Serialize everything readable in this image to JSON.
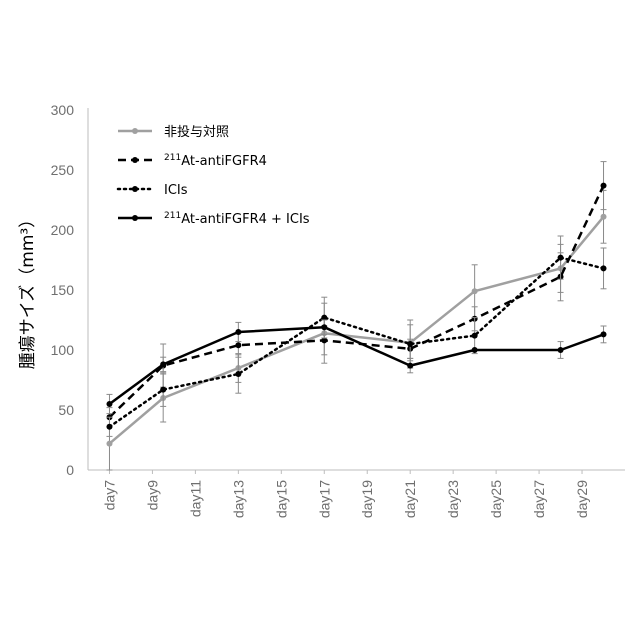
{
  "chart_data": {
    "type": "line",
    "title": "",
    "xlabel": "",
    "ylabel": "腫瘍サイズ（mm³）",
    "ylim": [
      0,
      300
    ],
    "yticks": [
      0,
      50,
      100,
      150,
      200,
      250,
      300
    ],
    "categories": [
      "day7",
      "day9",
      "day11",
      "day13",
      "day15",
      "day17",
      "day19",
      "day21",
      "day23",
      "day25",
      "day27",
      "day29"
    ],
    "legend_position": "top-left",
    "grid": false,
    "series": [
      {
        "name": "非投与対照",
        "style": "solid",
        "color": "#a0a0a0",
        "points": [
          {
            "x": 7,
            "y": 22,
            "err": 22
          },
          {
            "x": 9.5,
            "y": 60,
            "err": 20
          },
          {
            "x": 13,
            "y": 85,
            "err": 12
          },
          {
            "x": 17,
            "y": 114,
            "err": 25
          },
          {
            "x": 21,
            "y": 106,
            "err": 15
          },
          {
            "x": 24,
            "y": 149,
            "err": 22
          },
          {
            "x": 28,
            "y": 168,
            "err": 20
          },
          {
            "x": 30,
            "y": 211,
            "err": 22
          }
        ]
      },
      {
        "name": "At-antiFGFR4",
        "sup": "211",
        "style": "dashed",
        "color": "#000000",
        "points": [
          {
            "x": 7,
            "y": 44,
            "err": 8
          },
          {
            "x": 9.5,
            "y": 87,
            "err": 18
          },
          {
            "x": 13,
            "y": 104,
            "err": 10
          },
          {
            "x": 17,
            "y": 108,
            "err": 12
          },
          {
            "x": 21,
            "y": 101,
            "err": 8
          },
          {
            "x": 24,
            "y": 126,
            "err": 10
          },
          {
            "x": 28,
            "y": 161,
            "err": 20
          },
          {
            "x": 30,
            "y": 237,
            "err": 20
          }
        ]
      },
      {
        "name": "ICIs",
        "style": "dotted",
        "color": "#000000",
        "points": [
          {
            "x": 7,
            "y": 36,
            "err": 8
          },
          {
            "x": 9.5,
            "y": 67,
            "err": 14
          },
          {
            "x": 13,
            "y": 80,
            "err": 16
          },
          {
            "x": 17,
            "y": 127,
            "err": 17
          },
          {
            "x": 21,
            "y": 105,
            "err": 20
          },
          {
            "x": 24,
            "y": 112,
            "err": 15
          },
          {
            "x": 28,
            "y": 177,
            "err": 18
          },
          {
            "x": 30,
            "y": 168,
            "err": 17
          }
        ]
      },
      {
        "name": "At-antiFGFR4 + ICIs",
        "sup": "211",
        "style": "solid",
        "color": "#000000",
        "points": [
          {
            "x": 7,
            "y": 55,
            "err": 8
          },
          {
            "x": 9.5,
            "y": 88,
            "err": 6
          },
          {
            "x": 13,
            "y": 115,
            "err": 8
          },
          {
            "x": 17,
            "y": 119,
            "err": 6
          },
          {
            "x": 21,
            "y": 87,
            "err": 6
          },
          {
            "x": 24,
            "y": 100,
            "err": 0
          },
          {
            "x": 28,
            "y": 100,
            "err": 7
          },
          {
            "x": 30,
            "y": 113,
            "err": 7
          }
        ]
      }
    ]
  }
}
